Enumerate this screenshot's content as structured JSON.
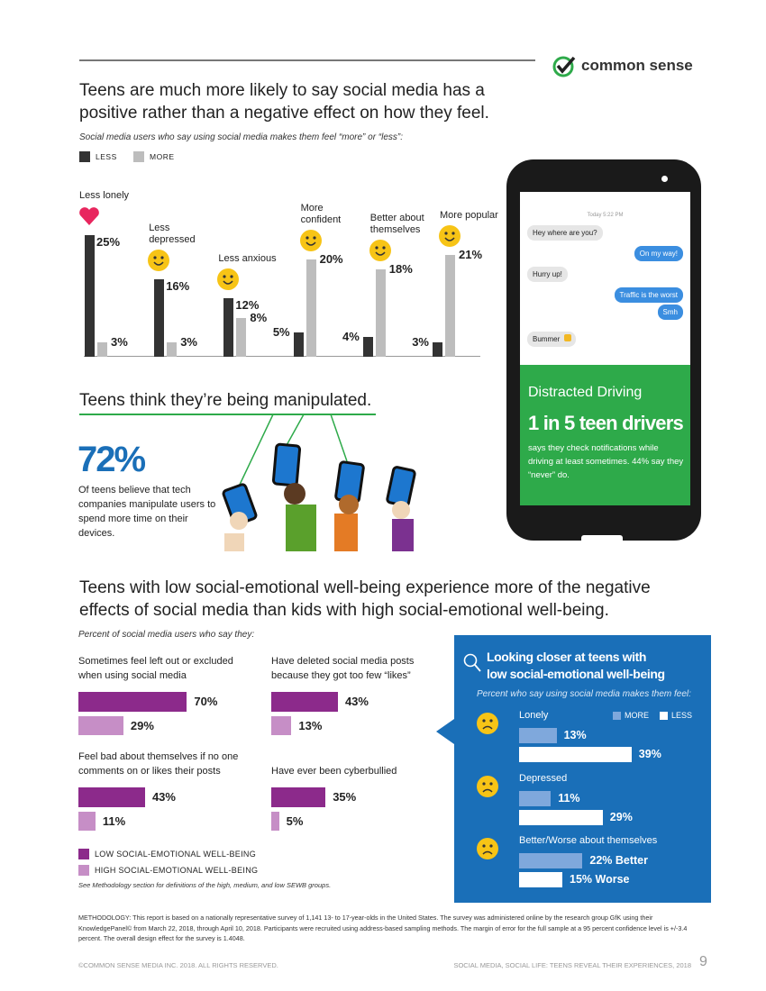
{
  "header": {
    "brand": "common sense"
  },
  "section1": {
    "title": "Teens are much more likely to say social media has a positive rather than a negative effect on how they feel.",
    "subtitle": "Social media users who say using social media makes them feel “more” or “less”:"
  },
  "phone": {
    "time": "Today 5:22 PM",
    "messages": [
      "Hey where are you?",
      "On my way!",
      "Hurry up!",
      "Traffic is the worst",
      "Smh",
      "Bummer"
    ],
    "panel_title": "Distracted Driving",
    "panel_headline": "1 in 5 teen drivers",
    "panel_text": "says they check notifications while driving at least sometimes. 44% say they “never” do."
  },
  "section2": {
    "title": "Teens think they’re being manipulated.",
    "stat": "72%",
    "text": "Of teens believe that tech companies manipulate users to spend more time on their devices."
  },
  "section3": {
    "title": "Teens with low social-emotional well-being experience more of the negative effects of social media than kids with high social-emotional well-being.",
    "subtitle": "Percent of social media users who say they:",
    "note": "See Methodology section for definitions of the high, medium, and low SEWB groups."
  },
  "chart_data": [
    {
      "type": "bar",
      "categories": [
        "Less lonely",
        "Less depressed",
        "Less anxious",
        "More confident",
        "Better about themselves",
        "More popular"
      ],
      "series": [
        {
          "name": "LESS",
          "color": "#333333",
          "values": [
            25,
            16,
            12,
            5,
            4,
            3
          ],
          "value_labels": [
            "25%",
            "16%",
            "12%",
            "5%",
            "4%",
            "3%"
          ]
        },
        {
          "name": "MORE",
          "color": "#bdbdbd",
          "values": [
            3,
            3,
            8,
            20,
            18,
            21
          ],
          "value_labels": [
            "3%",
            "3%",
            "8%",
            "20%",
            "18%",
            "21%"
          ]
        }
      ]
    },
    {
      "type": "hbar",
      "categories": [
        "Sometimes feel left out or excluded when using social media",
        "Have deleted social media posts because they got too few “likes”",
        "Feel bad about themselves if no one comments on or likes their posts",
        "Have ever been cyberbullied"
      ],
      "series": [
        {
          "name": "LOW SOCIAL-EMOTIONAL WELL-BEING",
          "color": "#8c2a8b",
          "values": [
            70,
            43,
            43,
            35
          ],
          "value_labels": [
            "70%",
            "43%",
            "43%",
            "35%"
          ]
        },
        {
          "name": "HIGH SOCIAL-EMOTIONAL WELL-BEING",
          "color": "#c68ec6",
          "values": [
            29,
            13,
            11,
            5
          ],
          "value_labels": [
            "29%",
            "13%",
            "11%",
            "5%"
          ]
        }
      ]
    },
    {
      "type": "hbar",
      "title": "Looking closer at teens with low social-emotional well-being",
      "subtitle": "Percent who say using social media makes them feel:",
      "categories": [
        "Lonely",
        "Depressed",
        "Better/Worse about themselves"
      ],
      "series": [
        {
          "name": "MORE",
          "color": "#7fa8dc",
          "values": [
            13,
            11,
            22
          ],
          "value_labels": [
            "13%",
            "11%",
            "22% Better"
          ]
        },
        {
          "name": "LESS",
          "color": "#ffffff",
          "values": [
            39,
            29,
            15
          ],
          "value_labels": [
            "39%",
            "29%",
            "15% Worse"
          ]
        }
      ]
    }
  ],
  "footer": {
    "methodology": "METHODOLOGY: This report is based on a nationally representative survey of 1,141 13- to 17-year-olds in the United States. The survey was administered online by the research group GfK using their KnowledgePanel© from March 22, 2018, through April 10, 2018. Participants were recruited using address-based sampling methods. The margin of error for the full sample at a 95 percent confidence level is +/-3.4 percent. The overall design effect for the survey is 1.4048.",
    "copyright": "©COMMON SENSE MEDIA INC. 2018. ALL RIGHTS RESERVED.",
    "running_title": "SOCIAL MEDIA, SOCIAL LIFE: TEENS REVEAL THEIR EXPERIENCES, 2018",
    "page": "9"
  }
}
